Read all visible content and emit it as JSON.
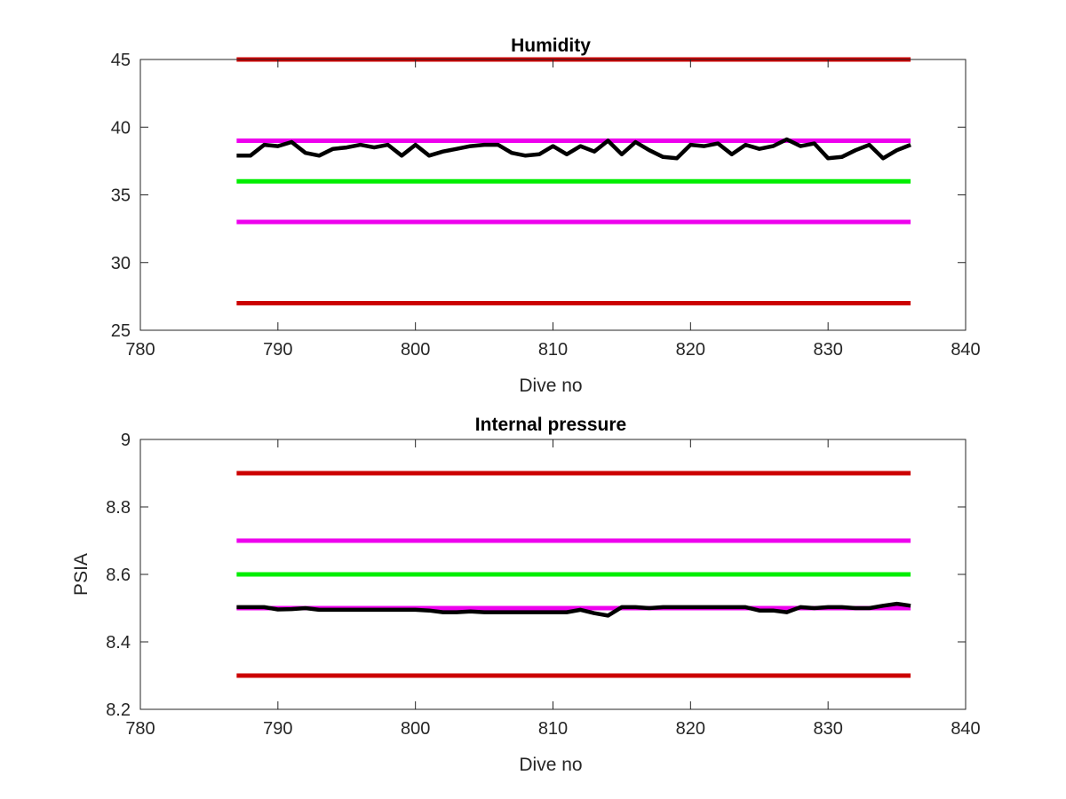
{
  "chart_data": [
    {
      "type": "line",
      "title": "Humidity",
      "xlabel": "Dive no",
      "ylabel": "",
      "xlim": [
        780,
        840
      ],
      "ylim": [
        25,
        45
      ],
      "xticks": [
        780,
        790,
        800,
        810,
        820,
        830,
        840
      ],
      "yticks": [
        25,
        30,
        35,
        40,
        45
      ],
      "grid": false,
      "series": [
        {
          "color": "#000000",
          "x": [
            787,
            788,
            789,
            790,
            791,
            792,
            793,
            794,
            795,
            796,
            797,
            798,
            799,
            800,
            801,
            802,
            803,
            804,
            805,
            806,
            807,
            808,
            809,
            810,
            811,
            812,
            813,
            814,
            815,
            816,
            817,
            818,
            819,
            820,
            821,
            822,
            823,
            824,
            825,
            826,
            827,
            828,
            829,
            830,
            831,
            832,
            833,
            834,
            835,
            836
          ],
          "values": [
            37.9,
            37.9,
            38.7,
            38.6,
            38.9,
            38.1,
            37.9,
            38.4,
            38.5,
            38.7,
            38.5,
            38.7,
            37.9,
            38.7,
            37.9,
            38.2,
            38.4,
            38.6,
            38.7,
            38.7,
            38.1,
            37.9,
            38.0,
            38.6,
            38.0,
            38.6,
            38.2,
            39.0,
            38.0,
            38.9,
            38.3,
            37.8,
            37.7,
            38.7,
            38.6,
            38.8,
            38.0,
            38.7,
            38.4,
            38.6,
            39.1,
            38.6,
            38.8,
            37.7,
            37.8,
            38.3,
            38.7,
            37.7,
            38.3,
            38.7
          ]
        }
      ],
      "reference_lines": [
        {
          "y": 45,
          "x_range": [
            787,
            836
          ],
          "color": "#cc0000"
        },
        {
          "y": 39,
          "x_range": [
            787,
            836
          ],
          "color": "#ee00ee"
        },
        {
          "y": 36,
          "x_range": [
            787,
            836
          ],
          "color": "#00ee00"
        },
        {
          "y": 33,
          "x_range": [
            787,
            836
          ],
          "color": "#ee00ee"
        },
        {
          "y": 27,
          "x_range": [
            787,
            836
          ],
          "color": "#cc0000"
        }
      ]
    },
    {
      "type": "line",
      "title": "Internal pressure",
      "xlabel": "Dive no",
      "ylabel": "PSIA",
      "xlim": [
        780,
        840
      ],
      "ylim": [
        8.2,
        9
      ],
      "xticks": [
        780,
        790,
        800,
        810,
        820,
        830,
        840
      ],
      "yticks": [
        8.2,
        8.4,
        8.6,
        8.8,
        9
      ],
      "ytick_labels": [
        "8.2",
        "8.4",
        "8.6",
        "8.8",
        "9"
      ],
      "grid": false,
      "series": [
        {
          "color": "#000000",
          "x": [
            787,
            788,
            789,
            790,
            791,
            792,
            793,
            794,
            795,
            796,
            797,
            798,
            799,
            800,
            801,
            802,
            803,
            804,
            805,
            806,
            807,
            808,
            809,
            810,
            811,
            812,
            813,
            814,
            815,
            816,
            817,
            818,
            819,
            820,
            821,
            822,
            823,
            824,
            825,
            826,
            827,
            828,
            829,
            830,
            831,
            832,
            833,
            834,
            835,
            836
          ],
          "values": [
            8.503,
            8.503,
            8.503,
            8.496,
            8.497,
            8.5,
            8.495,
            8.495,
            8.495,
            8.495,
            8.495,
            8.495,
            8.495,
            8.495,
            8.493,
            8.488,
            8.488,
            8.49,
            8.488,
            8.488,
            8.488,
            8.488,
            8.488,
            8.488,
            8.488,
            8.495,
            8.485,
            8.478,
            8.503,
            8.503,
            8.5,
            8.503,
            8.503,
            8.503,
            8.503,
            8.503,
            8.503,
            8.503,
            8.493,
            8.493,
            8.488,
            8.503,
            8.5,
            8.503,
            8.503,
            8.5,
            8.5,
            8.507,
            8.513,
            8.507
          ]
        }
      ],
      "reference_lines": [
        {
          "y": 8.9,
          "x_range": [
            787,
            836
          ],
          "color": "#cc0000"
        },
        {
          "y": 8.7,
          "x_range": [
            787,
            836
          ],
          "color": "#ee00ee"
        },
        {
          "y": 8.6,
          "x_range": [
            787,
            836
          ],
          "color": "#00ee00"
        },
        {
          "y": 8.5,
          "x_range": [
            787,
            836
          ],
          "color": "#ee00ee"
        },
        {
          "y": 8.3,
          "x_range": [
            787,
            836
          ],
          "color": "#cc0000"
        }
      ]
    }
  ]
}
